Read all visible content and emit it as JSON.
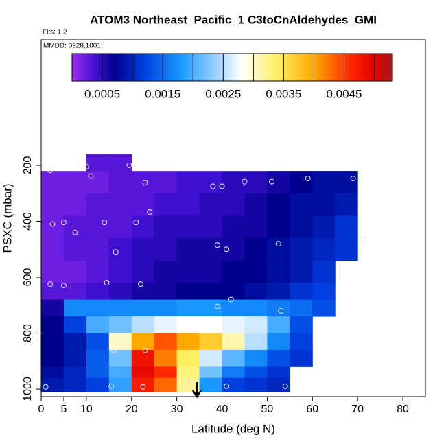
{
  "chart_data": {
    "type": "heatmap",
    "title": "ATOM3 Northeast_Pacific_1 C3toCnAldehydes_GMI",
    "flights": "Flts: 1,2",
    "dates": "MMDD: 0928,1001",
    "xlabel": "Latitude (deg N)",
    "ylabel": "PSXC (mbar)",
    "xlim": [
      0,
      85
    ],
    "ylim": [
      1027,
      -249
    ],
    "xticks": [
      0,
      5,
      10,
      20,
      30,
      40,
      50,
      60,
      70,
      80
    ],
    "yticks": [
      200,
      400,
      600,
      800,
      1000
    ],
    "x_edges": [
      0,
      5,
      10,
      15,
      20,
      25,
      30,
      35,
      40,
      45,
      50,
      55,
      60,
      65,
      70,
      75
    ],
    "y_edges": [
      160,
      220,
      300,
      380,
      460,
      540,
      620,
      680,
      740,
      800,
      860,
      920,
      960,
      1010
    ],
    "values": [
      [
        null,
        null,
        0.0003,
        0.0003,
        null,
        null,
        null,
        null,
        null,
        null,
        null,
        null,
        null,
        null,
        null
      ],
      [
        0.0002,
        0.0002,
        0.0002,
        0.0003,
        0.0003,
        0.0003,
        0.0004,
        0.0004,
        0.0005,
        0.0005,
        0.0006,
        0.0007,
        0.0008,
        0.0008,
        null
      ],
      [
        0.0002,
        0.0002,
        0.0003,
        0.0003,
        0.0003,
        0.0004,
        0.0004,
        0.0005,
        0.0005,
        0.0006,
        0.0007,
        0.0008,
        0.0008,
        0.0009,
        null
      ],
      [
        0.0002,
        0.0003,
        0.0003,
        0.0003,
        0.0004,
        0.0005,
        0.0005,
        0.0005,
        0.0006,
        0.0006,
        0.0007,
        0.0008,
        0.0009,
        0.0011,
        null
      ],
      [
        0.0002,
        0.0003,
        0.0003,
        0.0004,
        0.0005,
        0.0005,
        0.0006,
        0.0006,
        0.0006,
        0.0007,
        0.0008,
        0.0009,
        0.001,
        0.0011,
        null
      ],
      [
        0.0002,
        0.0002,
        0.0003,
        0.0004,
        0.0005,
        0.0006,
        0.0006,
        0.0006,
        0.0007,
        0.0007,
        0.0008,
        0.0009,
        0.0011,
        null,
        null
      ],
      [
        0.0003,
        0.0003,
        0.0004,
        0.0005,
        0.0006,
        0.0006,
        0.0007,
        0.0007,
        0.0007,
        0.0008,
        0.0009,
        0.0011,
        0.0012,
        null,
        null
      ],
      [
        0.0006,
        0.0017,
        0.0017,
        0.0017,
        0.0017,
        0.0017,
        0.0018,
        0.0018,
        0.0017,
        0.0017,
        0.0016,
        0.0015,
        0.0013,
        null,
        null
      ],
      [
        0.0007,
        0.0012,
        0.002,
        0.0022,
        0.0025,
        0.0027,
        0.0028,
        0.0028,
        0.0027,
        0.0026,
        0.002,
        0.0013,
        null,
        null,
        null
      ],
      [
        0.0007,
        0.0009,
        0.0013,
        0.003,
        0.004,
        0.0044,
        0.004,
        0.0037,
        0.0031,
        0.0025,
        0.0017,
        0.0012,
        null,
        null,
        null
      ],
      [
        0.0007,
        0.0009,
        0.0014,
        0.0022,
        0.0048,
        0.0042,
        0.0034,
        0.0026,
        0.0021,
        0.0017,
        0.0013,
        0.0011,
        null,
        null,
        null
      ],
      [
        0.0008,
        0.001,
        0.0014,
        0.002,
        0.0049,
        0.0046,
        0.0033,
        0.0022,
        0.0016,
        0.0013,
        0.0011,
        null,
        null,
        null,
        null
      ],
      [
        0.0009,
        0.001,
        0.0012,
        0.0019,
        0.0047,
        0.0043,
        0.0032,
        0.0018,
        0.0012,
        0.0011,
        0.001,
        null,
        null,
        null,
        null
      ]
    ],
    "points": {
      "x": [
        2,
        10,
        11,
        19.5,
        23,
        38,
        40,
        45,
        51,
        59,
        69,
        24,
        2.5,
        5,
        7.5,
        14,
        21,
        71,
        16.5,
        39,
        41,
        52.5,
        2,
        5,
        14.5,
        22,
        42,
        39,
        53,
        16,
        23,
        1,
        15.5,
        22.5,
        41,
        54
      ],
      "y": [
        218,
        205,
        238,
        200,
        262,
        275,
        275,
        258,
        258,
        247,
        247,
        367,
        410,
        404,
        440,
        404,
        404,
        465,
        510,
        485,
        500,
        480,
        625,
        630,
        620,
        625,
        680,
        705,
        720,
        862,
        862,
        992,
        990,
        992,
        990,
        990
      ],
      "color": "#e8e8ff"
    },
    "colorbar": {
      "lim": [
        0,
        0.0053
      ],
      "ticks": [
        0.0005,
        0.0015,
        0.0025,
        0.0035,
        0.0045
      ],
      "breaks": [
        0.0005,
        0.001,
        0.0015,
        0.002,
        0.0025,
        0.003,
        0.0035,
        0.004,
        0.0045,
        0.005
      ],
      "stops": [
        [
          0,
          "#9a2cf0"
        ],
        [
          0.0004,
          "#4010d0"
        ],
        [
          0.0007,
          "#00008c"
        ],
        [
          0.0012,
          "#0040e0"
        ],
        [
          0.0018,
          "#1898ff"
        ],
        [
          0.0024,
          "#a0d4ff"
        ],
        [
          0.0028,
          "#ffffff"
        ],
        [
          0.0034,
          "#ffee60"
        ],
        [
          0.004,
          "#ffa800"
        ],
        [
          0.0046,
          "#ff2800"
        ],
        [
          0.005,
          "#dd0000"
        ],
        [
          0.0053,
          "#a81818"
        ]
      ]
    }
  }
}
